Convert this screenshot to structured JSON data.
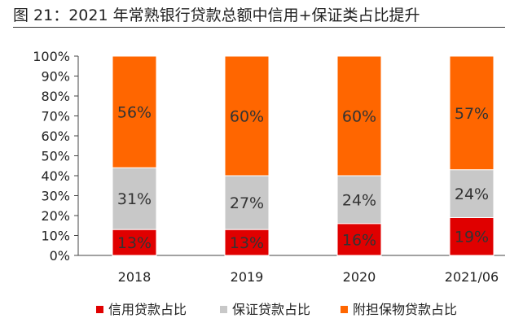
{
  "figure_title": "图 21：2021 年常熟银行贷款总额中信用+保证类占比提升",
  "chart_data": {
    "type": "bar",
    "stacked": true,
    "categories": [
      "2018",
      "2019",
      "2020",
      "2021/06"
    ],
    "series": [
      {
        "name": "信用贷款占比",
        "color": "#e00000",
        "values": [
          13,
          13,
          16,
          19
        ],
        "labels": [
          "13%",
          "13%",
          "16%",
          "19%"
        ]
      },
      {
        "name": "保证贷款占比",
        "color": "#c8c8c8",
        "values": [
          31,
          27,
          24,
          24
        ],
        "labels": [
          "31%",
          "27%",
          "24%",
          "24%"
        ]
      },
      {
        "name": "附担保物贷款占比",
        "color": "#ff6600",
        "values": [
          56,
          60,
          60,
          57
        ],
        "labels": [
          "56%",
          "60%",
          "60%",
          "57%"
        ]
      }
    ],
    "yticks": [
      "0%",
      "10%",
      "20%",
      "30%",
      "40%",
      "50%",
      "60%",
      "70%",
      "80%",
      "90%",
      "100%"
    ],
    "ylim": [
      0,
      100
    ],
    "legend_position": "bottom",
    "grid": false
  }
}
